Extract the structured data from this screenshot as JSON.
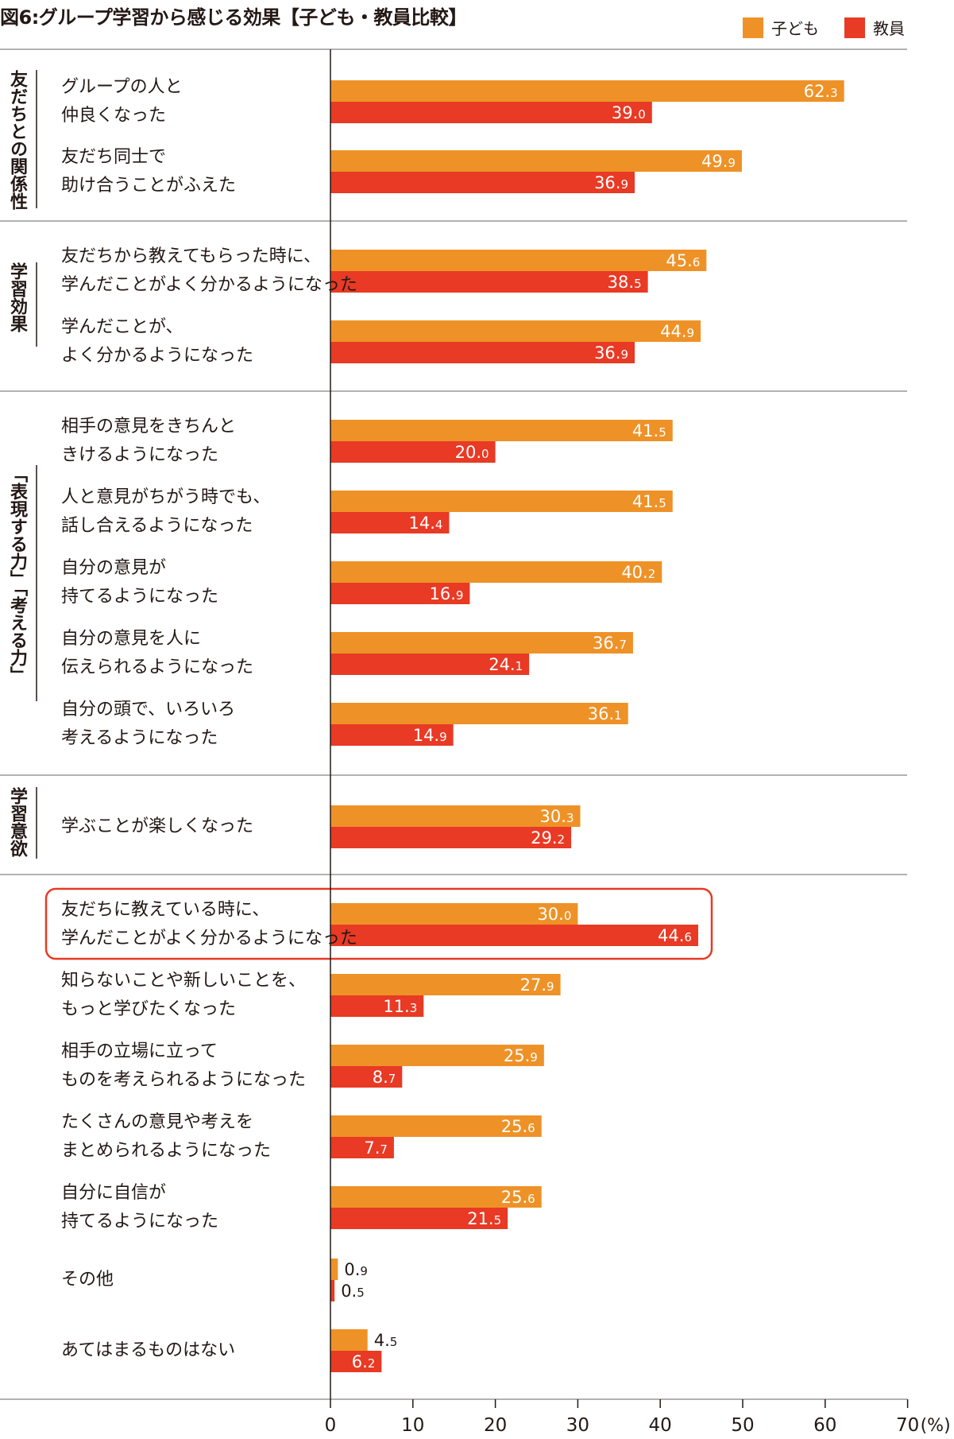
{
  "title": "図6:グループ学習から感じる効果【子ども・教員比較】",
  "colors": {
    "children": "#ee9227",
    "teachers": "#e83a24",
    "highlight": "#e83a24",
    "grid": "#999999"
  },
  "chart_data": {
    "type": "bar",
    "orientation": "horizontal",
    "title": "図6:グループ学習から感じる効果【子ども・教員比較】",
    "xlim": [
      0,
      70
    ],
    "xticks": [
      0,
      10,
      20,
      30,
      40,
      50,
      60,
      70
    ],
    "xunit": "(%)",
    "legend_position": "top-right",
    "grid": false,
    "series": [
      {
        "name": "子ども",
        "values": [
          62.3,
          49.9,
          45.6,
          44.9,
          41.5,
          41.5,
          40.2,
          36.7,
          36.1,
          30.3,
          30.0,
          27.9,
          25.9,
          25.6,
          25.6,
          0.9,
          4.5
        ]
      },
      {
        "name": "教員",
        "values": [
          39.0,
          36.9,
          38.5,
          36.9,
          20.0,
          14.4,
          16.9,
          24.1,
          14.9,
          29.2,
          44.6,
          11.3,
          8.7,
          7.7,
          21.5,
          0.5,
          6.2
        ]
      }
    ],
    "categories": [
      [
        "グループの人と",
        "仲良くなった"
      ],
      [
        "友だち同士で",
        "助け合うことがふえた"
      ],
      [
        "友だちから教えてもらった時に、",
        "学んだことがよく分かるようになった"
      ],
      [
        "学んだことが、",
        "よく分かるようになった"
      ],
      [
        "相手の意見をきちんと",
        "きけるようになった"
      ],
      [
        "人と意見がちがう時でも、",
        "話し合えるようになった"
      ],
      [
        "自分の意見が",
        "持てるようになった"
      ],
      [
        "自分の意見を人に",
        "伝えられるようになった"
      ],
      [
        "自分の頭で、いろいろ",
        "考えるようになった"
      ],
      [
        "学ぶことが楽しくなった"
      ],
      [
        "友だちに教えている時に、",
        "学んだことがよく分かるようになった"
      ],
      [
        "知らないことや新しいことを、",
        "もっと学びたくなった"
      ],
      [
        "相手の立場に立って",
        "ものを考えられるようになった"
      ],
      [
        "たくさんの意見や考えを",
        "まとめられるようになった"
      ],
      [
        "自分に自信が",
        "持てるようになった"
      ],
      [
        "その他"
      ],
      [
        "あてはまるものはない"
      ]
    ],
    "groups": [
      {
        "label": "友だちとの関係性",
        "items": [
          0,
          1
        ]
      },
      {
        "label": "学習効果",
        "items": [
          2,
          3
        ]
      },
      {
        "label": "「表現する力」「考える力」",
        "items": [
          4,
          5,
          6,
          7,
          8
        ]
      },
      {
        "label": "学習意欲",
        "items": [
          9
        ]
      },
      {
        "label": "",
        "items": [
          10,
          11,
          12,
          13,
          14,
          15,
          16
        ]
      }
    ],
    "highlighted_category": 10
  }
}
